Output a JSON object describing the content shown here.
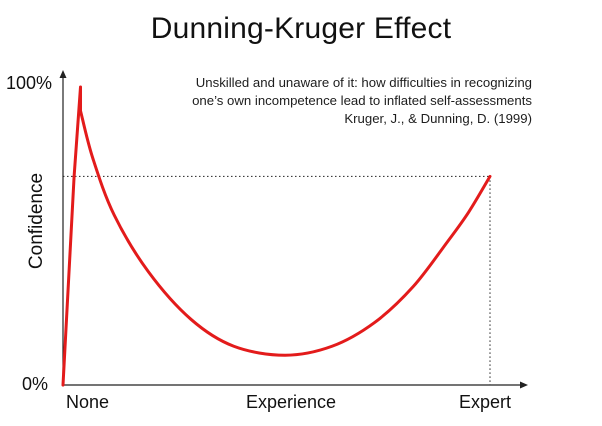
{
  "chart_data": {
    "type": "line",
    "title": "Dunning-Kruger Effect",
    "subtitle_lines": [
      "Unskilled and unaware of it: how difficulties in recognizing",
      "one’s own incompetence lead to inflated self-assessments",
      "Kruger, J., & Dunning, D. (1999)"
    ],
    "ylabel": "Confidence",
    "xlabel": "Experience",
    "x_tick_labels": [
      "None",
      "Experience",
      "Expert"
    ],
    "y_tick_labels": [
      "0%",
      "100%"
    ],
    "xlim": [
      0,
      100
    ],
    "ylim": [
      0,
      100
    ],
    "grid": false,
    "line_color": "#e31b1b",
    "reference_color": "#222222",
    "series": [
      {
        "values": [
          [
            0,
            0
          ],
          [
            2.6,
            70
          ],
          [
            4.1,
            100
          ],
          [
            4.1,
            92
          ],
          [
            7,
            76
          ],
          [
            12,
            57
          ],
          [
            20,
            38
          ],
          [
            30,
            22
          ],
          [
            40,
            13
          ],
          [
            52,
            10
          ],
          [
            63,
            13
          ],
          [
            73,
            21
          ],
          [
            82,
            33
          ],
          [
            90,
            48
          ],
          [
            95,
            58
          ],
          [
            100,
            70
          ]
        ]
      }
    ],
    "reference_y": 70,
    "reference_x": 100
  }
}
